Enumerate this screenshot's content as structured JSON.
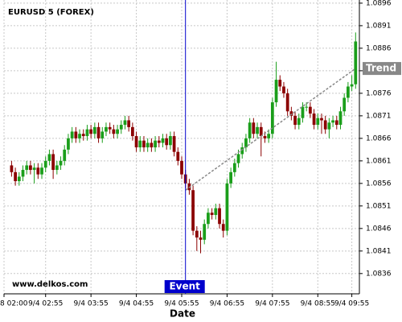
{
  "chart_data": {
    "type": "candlestick",
    "title": "EURUSD 5 (FOREX)",
    "xlabel": "Date",
    "watermark": "www.delkos.com",
    "up_color": "#1a9e1a",
    "down_color": "#8b0000",
    "grid": true,
    "x": [
      0,
      1,
      2,
      3,
      4,
      5,
      6,
      7,
      8,
      9,
      10,
      11,
      12,
      13,
      14,
      15,
      16,
      17,
      18,
      19,
      20,
      21,
      22,
      23,
      24,
      25,
      26,
      27,
      28,
      29,
      30,
      31,
      32,
      33,
      34,
      35,
      36,
      37,
      38,
      39,
      40,
      41,
      42,
      43,
      44,
      45,
      46,
      47,
      48,
      49,
      50,
      51,
      52,
      53,
      54,
      55,
      56,
      57,
      58,
      59,
      60,
      61,
      62,
      63,
      64,
      65,
      66,
      67,
      68,
      69,
      70,
      71,
      72,
      73,
      74,
      75,
      76,
      77,
      78,
      79,
      80,
      81,
      82,
      83,
      84,
      85,
      86,
      87,
      88,
      89,
      90,
      91
    ],
    "open": [
      1.086,
      1.08585,
      1.08565,
      1.08575,
      1.0859,
      1.086,
      1.0859,
      1.08595,
      1.0858,
      1.08595,
      1.0861,
      1.08625,
      1.0859,
      1.086,
      1.0861,
      1.08635,
      1.0866,
      1.08675,
      1.0866,
      1.0867,
      1.08665,
      1.0868,
      1.0867,
      1.08685,
      1.0866,
      1.08675,
      1.08685,
      1.0868,
      1.0867,
      1.0868,
      1.0869,
      1.087,
      1.08685,
      1.08665,
      1.0864,
      1.08655,
      1.0864,
      1.0865,
      1.0864,
      1.08655,
      1.0865,
      1.0866,
      1.08645,
      1.08665,
      1.0863,
      1.0861,
      1.0858,
      1.0856,
      1.08545,
      1.08455,
      1.0844,
      1.08435,
      1.0847,
      1.08495,
      1.0849,
      1.08505,
      1.0847,
      1.08455,
      1.0856,
      1.08585,
      1.08605,
      1.08625,
      1.0864,
      1.0866,
      1.08695,
      1.0867,
      1.08685,
      1.08665,
      1.0866,
      1.0867,
      1.0874,
      1.0879,
      1.08775,
      1.0876,
      1.0872,
      1.0871,
      1.0869,
      1.08705,
      1.0873,
      1.0873,
      1.08715,
      1.0869,
      1.08705,
      1.087,
      1.0868,
      1.08695,
      1.087,
      1.0869,
      1.0872,
      1.0875,
      1.08775,
      1.0878
    ],
    "high": [
      1.0861,
      1.08595,
      1.08585,
      1.086,
      1.0861,
      1.0861,
      1.08605,
      1.08605,
      1.08605,
      1.0862,
      1.08635,
      1.08635,
      1.0861,
      1.0862,
      1.08645,
      1.0867,
      1.08685,
      1.08685,
      1.0868,
      1.0868,
      1.0869,
      1.0869,
      1.08695,
      1.08695,
      1.08685,
      1.08695,
      1.08695,
      1.0869,
      1.0869,
      1.087,
      1.0871,
      1.0871,
      1.08695,
      1.08675,
      1.08665,
      1.08665,
      1.0866,
      1.0866,
      1.08665,
      1.08665,
      1.0867,
      1.0867,
      1.08675,
      1.08675,
      1.0864,
      1.0862,
      1.0859,
      1.0857,
      1.08555,
      1.08465,
      1.08455,
      1.0848,
      1.08505,
      1.08505,
      1.08515,
      1.08515,
      1.0848,
      1.0857,
      1.08595,
      1.08615,
      1.08635,
      1.0865,
      1.0867,
      1.08705,
      1.08705,
      1.08695,
      1.08695,
      1.08675,
      1.0868,
      1.0875,
      1.0883,
      1.088,
      1.08785,
      1.0877,
      1.0873,
      1.0872,
      1.08715,
      1.0874,
      1.0874,
      1.0874,
      1.08725,
      1.08715,
      1.08715,
      1.0871,
      1.08705,
      1.0871,
      1.0871,
      1.0873,
      1.0876,
      1.08785,
      1.088,
      1.08895
    ],
    "low": [
      1.08575,
      1.08555,
      1.08555,
      1.08565,
      1.0858,
      1.0858,
      1.0856,
      1.0857,
      1.0857,
      1.08585,
      1.086,
      1.0857,
      1.0858,
      1.0859,
      1.086,
      1.08625,
      1.0865,
      1.0865,
      1.0865,
      1.08655,
      1.08655,
      1.0866,
      1.0866,
      1.0865,
      1.0865,
      1.08665,
      1.0867,
      1.0866,
      1.0866,
      1.0867,
      1.0868,
      1.08675,
      1.08655,
      1.0863,
      1.0863,
      1.0863,
      1.0863,
      1.0863,
      1.0863,
      1.0864,
      1.0864,
      1.08635,
      1.08635,
      1.0862,
      1.086,
      1.0857,
      1.0855,
      1.08535,
      1.08445,
      1.0841,
      1.08405,
      1.08425,
      1.0846,
      1.0848,
      1.0848,
      1.0846,
      1.0844,
      1.08445,
      1.0855,
      1.08575,
      1.08595,
      1.08615,
      1.0863,
      1.0865,
      1.0866,
      1.0866,
      1.0862,
      1.0865,
      1.0865,
      1.0866,
      1.0873,
      1.08765,
      1.0875,
      1.0871,
      1.087,
      1.0868,
      1.0868,
      1.08695,
      1.0872,
      1.08705,
      1.0868,
      1.0868,
      1.0867,
      1.0867,
      1.0866,
      1.08685,
      1.0868,
      1.0868,
      1.0871,
      1.0874,
      1.08765,
      1.0877
    ],
    "close": [
      1.08585,
      1.08565,
      1.08575,
      1.0859,
      1.086,
      1.0859,
      1.08595,
      1.0858,
      1.08595,
      1.0861,
      1.08625,
      1.0859,
      1.086,
      1.0861,
      1.08635,
      1.0866,
      1.08675,
      1.0866,
      1.0867,
      1.08665,
      1.0868,
      1.0867,
      1.08685,
      1.0866,
      1.08675,
      1.08685,
      1.0868,
      1.0867,
      1.0868,
      1.0869,
      1.087,
      1.08685,
      1.08665,
      1.0864,
      1.08655,
      1.0864,
      1.0865,
      1.0864,
      1.08655,
      1.0865,
      1.0866,
      1.08645,
      1.08665,
      1.0863,
      1.0861,
      1.0858,
      1.0856,
      1.08545,
      1.08455,
      1.0844,
      1.08435,
      1.0847,
      1.08495,
      1.0849,
      1.08505,
      1.0847,
      1.08455,
      1.0856,
      1.08585,
      1.08605,
      1.08625,
      1.0864,
      1.0866,
      1.08695,
      1.0867,
      1.08685,
      1.08665,
      1.0866,
      1.0867,
      1.0874,
      1.0879,
      1.08775,
      1.0876,
      1.0872,
      1.0871,
      1.0869,
      1.08705,
      1.0873,
      1.0873,
      1.08715,
      1.0869,
      1.08705,
      1.087,
      1.0868,
      1.08695,
      1.087,
      1.0869,
      1.0872,
      1.0875,
      1.08775,
      1.0878,
      1.08875
    ],
    "xlim": [
      -2,
      92
    ],
    "xticks": [
      {
        "value": -2,
        "label": "8 02:00"
      },
      {
        "value": 9,
        "label": "9/4 02:55"
      },
      {
        "value": 21,
        "label": "9/4 03:55"
      },
      {
        "value": 33,
        "label": "9/4 04:55"
      },
      {
        "value": 45,
        "label": "9/4 05:55"
      },
      {
        "value": 57,
        "label": "9/4 06:55"
      },
      {
        "value": 69,
        "label": "9/4 07:55"
      },
      {
        "value": 81,
        "label": "9/4 08:55"
      },
      {
        "value": 90,
        "label": "9/4 09:55"
      }
    ],
    "ylim": [
      1.08315,
      1.08967
    ],
    "yticks": [
      1.0836,
      1.0841,
      1.0846,
      1.0851,
      1.0856,
      1.0861,
      1.0866,
      1.0871,
      1.0876,
      1.0881,
      1.0886,
      1.0891,
      1.0896
    ],
    "event": {
      "label": "Event",
      "x": 46,
      "color": "#0000cc"
    },
    "trend": {
      "label": "Trend",
      "x": [
        46,
        91
      ],
      "y": [
        1.08545,
        1.08815
      ],
      "color": "#888888"
    }
  }
}
